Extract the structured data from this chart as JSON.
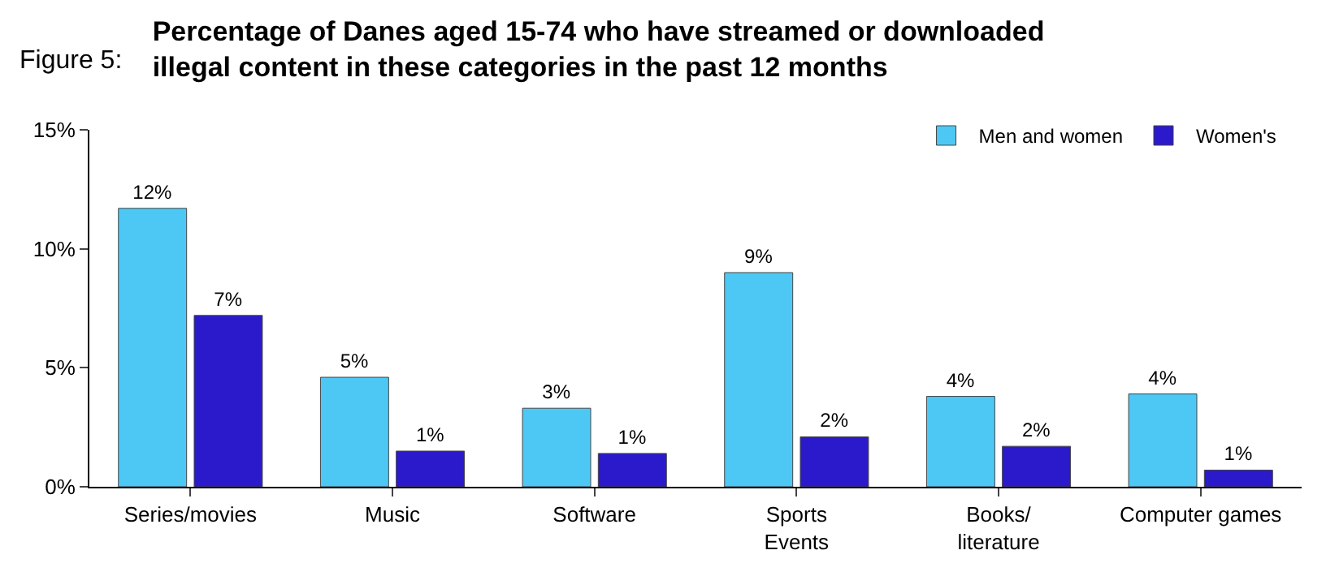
{
  "chart_data": {
    "type": "bar",
    "title": "Percentage of Danes aged 15-74 who have streamed or downloaded\nillegal content in these categories in the past 12 months",
    "annotations": [
      "Figure 5:"
    ],
    "categories": [
      "Series/movies",
      "Music",
      "Software",
      "Sports\nEvents",
      "Books/\nliterature",
      "Computer games"
    ],
    "series": [
      {
        "name": "Men and women",
        "color": "#4dc8f5",
        "values": [
          11.7,
          4.6,
          3.3,
          9.0,
          3.8,
          3.9
        ],
        "value_labels": [
          "12%",
          "5%",
          "3%",
          "9%",
          "4%",
          "4%"
        ]
      },
      {
        "name": "Women's",
        "color": "#2a1acb",
        "values": [
          7.2,
          1.5,
          1.4,
          2.1,
          1.7,
          0.7
        ],
        "value_labels": [
          "7%",
          "1%",
          "1%",
          "2%",
          "2%",
          "1%"
        ]
      }
    ],
    "ylim": [
      0,
      15
    ],
    "yticks": [
      {
        "value": 0,
        "label": "0%"
      },
      {
        "value": 5,
        "label": "5%"
      },
      {
        "value": 10,
        "label": "10%"
      },
      {
        "value": 15,
        "label": "15%"
      }
    ],
    "legend": "top right"
  }
}
